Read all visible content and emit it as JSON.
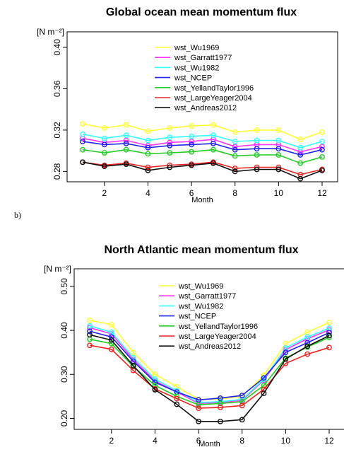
{
  "panel_b_label": "b)",
  "chart_data": [
    {
      "type": "line",
      "title": "Global ocean mean momentum flux",
      "ylabel": "[N m⁻²]",
      "xlabel": "Month",
      "x": [
        1,
        2,
        3,
        4,
        5,
        6,
        7,
        8,
        9,
        10,
        11,
        12
      ],
      "xticks": [
        2,
        4,
        6,
        8,
        10,
        12
      ],
      "yticks": [
        0.28,
        0.32,
        0.36,
        0.4
      ],
      "ylim": [
        0.27,
        0.415
      ],
      "legend_position": "top-center",
      "series": [
        {
          "name": "wst_Wu1969",
          "color": "#ffff33",
          "values": [
            0.326,
            0.322,
            0.325,
            0.319,
            0.322,
            0.324,
            0.325,
            0.318,
            0.32,
            0.32,
            0.311,
            0.318
          ]
        },
        {
          "name": "wst_Garratt1977",
          "color": "#ff33ff",
          "values": [
            0.312,
            0.308,
            0.31,
            0.305,
            0.308,
            0.309,
            0.311,
            0.304,
            0.306,
            0.306,
            0.299,
            0.304
          ]
        },
        {
          "name": "wst_Wu1982",
          "color": "#33ffff",
          "values": [
            0.316,
            0.312,
            0.315,
            0.31,
            0.313,
            0.314,
            0.315,
            0.309,
            0.31,
            0.31,
            0.303,
            0.309
          ]
        },
        {
          "name": "wst_NCEP",
          "color": "#2222ee",
          "values": [
            0.309,
            0.306,
            0.307,
            0.303,
            0.305,
            0.306,
            0.307,
            0.301,
            0.302,
            0.302,
            0.296,
            0.301
          ]
        },
        {
          "name": "wst_YellandTaylor1996",
          "color": "#22cc22",
          "values": [
            0.301,
            0.298,
            0.301,
            0.297,
            0.298,
            0.299,
            0.301,
            0.295,
            0.296,
            0.296,
            0.288,
            0.294
          ]
        },
        {
          "name": "wst_LargeYeager2004",
          "color": "#ee2222",
          "values": [
            0.289,
            0.286,
            0.288,
            0.284,
            0.286,
            0.287,
            0.289,
            0.283,
            0.284,
            0.284,
            0.277,
            0.282
          ]
        },
        {
          "name": "wst_Andreas2012",
          "color": "#111111",
          "values": [
            0.289,
            0.285,
            0.287,
            0.281,
            0.284,
            0.286,
            0.288,
            0.28,
            0.282,
            0.282,
            0.273,
            0.281
          ]
        }
      ]
    },
    {
      "type": "line",
      "title": "North Atlantic mean momentum flux",
      "ylabel": "[N m⁻²]",
      "xlabel": "Month",
      "x": [
        1,
        2,
        3,
        4,
        5,
        6,
        7,
        8,
        9,
        10,
        11,
        12
      ],
      "xticks": [
        2,
        4,
        6,
        8,
        10,
        12
      ],
      "yticks": [
        0.2,
        0.3,
        0.4,
        0.5
      ],
      "ylim": [
        0.175,
        0.54
      ],
      "legend_position": "top-center",
      "series": [
        {
          "name": "wst_Wu1969",
          "color": "#ffff33",
          "values": [
            0.423,
            0.413,
            0.35,
            0.3,
            0.272,
            0.243,
            0.244,
            0.25,
            0.298,
            0.37,
            0.396,
            0.418
          ]
        },
        {
          "name": "wst_Garratt1977",
          "color": "#ff33ff",
          "values": [
            0.406,
            0.392,
            0.334,
            0.285,
            0.26,
            0.234,
            0.236,
            0.241,
            0.287,
            0.356,
            0.381,
            0.401
          ]
        },
        {
          "name": "wst_Wu1982",
          "color": "#33ffff",
          "values": [
            0.41,
            0.396,
            0.338,
            0.289,
            0.263,
            0.236,
            0.238,
            0.243,
            0.289,
            0.36,
            0.385,
            0.405
          ]
        },
        {
          "name": "wst_NCEP",
          "color": "#2222ee",
          "values": [
            0.398,
            0.385,
            0.33,
            0.282,
            0.26,
            0.242,
            0.246,
            0.252,
            0.292,
            0.35,
            0.372,
            0.395
          ]
        },
        {
          "name": "wst_YellandTaylor1996",
          "color": "#22cc22",
          "values": [
            0.38,
            0.37,
            0.318,
            0.275,
            0.25,
            0.231,
            0.234,
            0.238,
            0.275,
            0.337,
            0.362,
            0.384
          ]
        },
        {
          "name": "wst_LargeYeager2004",
          "color": "#ee2222",
          "values": [
            0.366,
            0.357,
            0.309,
            0.267,
            0.245,
            0.223,
            0.225,
            0.229,
            0.266,
            0.325,
            0.346,
            0.361
          ]
        },
        {
          "name": "wst_Andreas2012",
          "color": "#111111",
          "values": [
            0.39,
            0.378,
            0.32,
            0.265,
            0.232,
            0.193,
            0.193,
            0.197,
            0.257,
            0.335,
            0.364,
            0.388
          ]
        }
      ]
    }
  ]
}
